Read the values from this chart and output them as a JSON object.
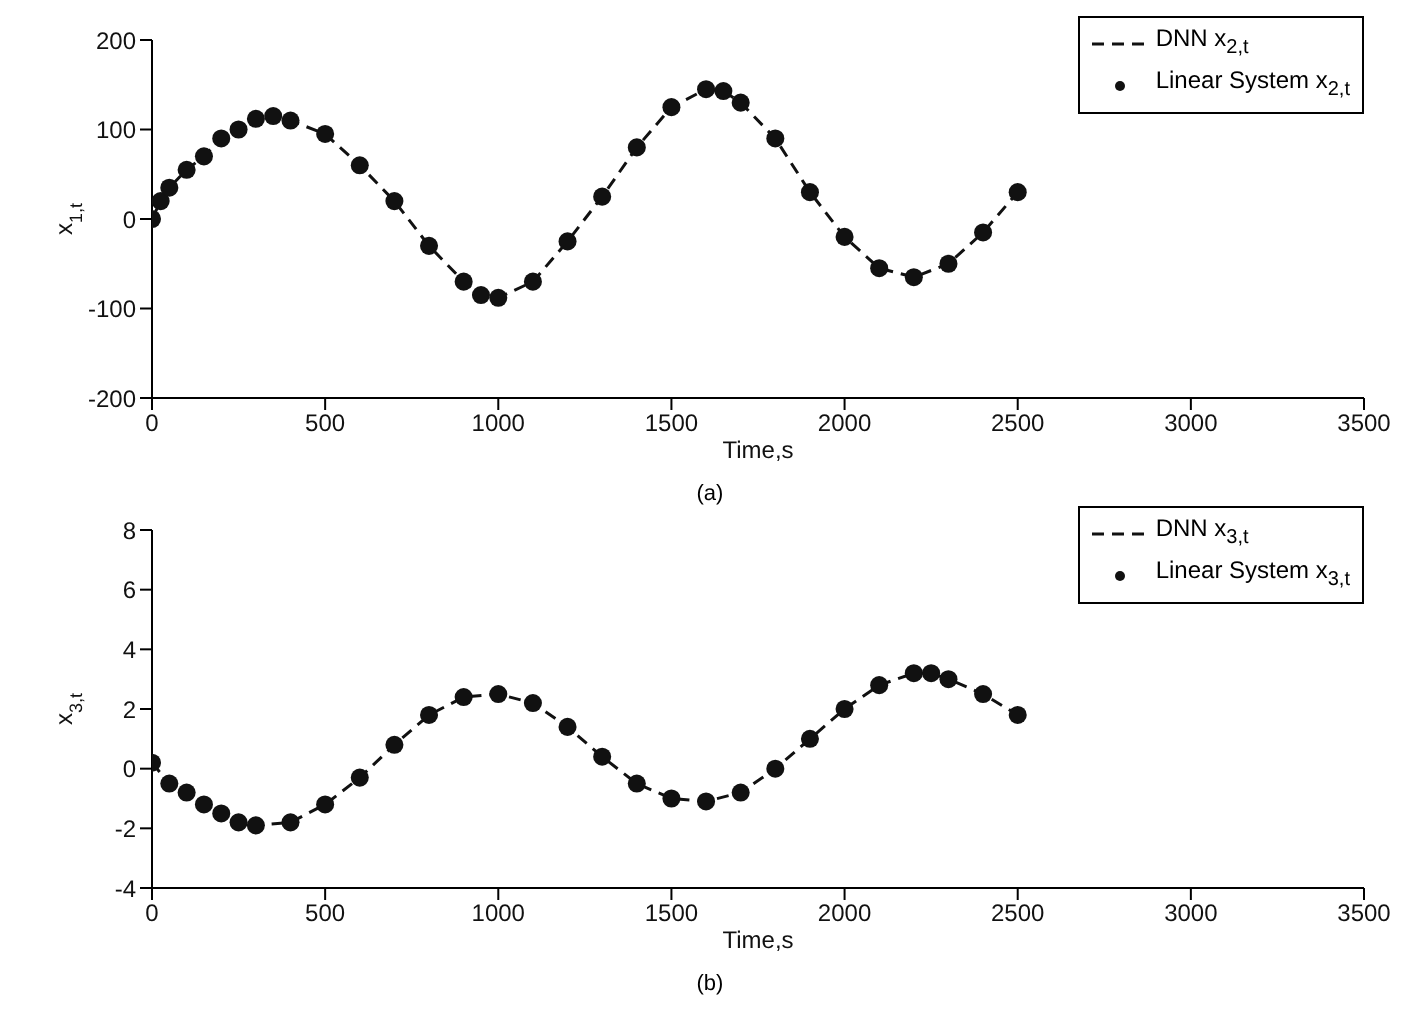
{
  "chart_data": [
    {
      "type": "line",
      "ylabel": "x$_{1,t}$",
      "xlabel": "Time,s",
      "annotations": [
        "(a)"
      ],
      "legend": "top right",
      "line_style": "dashed",
      "x": [
        0,
        25,
        50,
        100,
        150,
        200,
        250,
        300,
        350,
        400,
        500,
        600,
        700,
        800,
        900,
        950,
        1000,
        1100,
        1200,
        1300,
        1400,
        1500,
        1600,
        1650,
        1700,
        1800,
        1900,
        2000,
        2100,
        2200,
        2300,
        2400,
        2500
      ],
      "series": [
        {
          "name": "DNN x$_{2,t}$",
          "color": "#111111",
          "values": [
            0,
            20,
            35,
            55,
            70,
            90,
            100,
            112,
            115,
            110,
            95,
            60,
            20,
            -30,
            -70,
            -85,
            -88,
            -70,
            -25,
            25,
            80,
            125,
            145,
            143,
            130,
            90,
            30,
            -20,
            -55,
            -65,
            -50,
            -15,
            30
          ]
        },
        {
          "name": "Linear System x$_{2,t}$",
          "type": "scatter",
          "marker": "circle",
          "color": "#111111",
          "values": [
            0,
            20,
            35,
            55,
            70,
            90,
            100,
            112,
            115,
            110,
            95,
            60,
            20,
            -30,
            -70,
            -85,
            -88,
            -70,
            -25,
            25,
            80,
            125,
            145,
            143,
            130,
            90,
            30,
            -20,
            -55,
            -65,
            -50,
            -15,
            30
          ]
        }
      ],
      "xlim": [
        0,
        3500
      ],
      "xticks": [
        0,
        500,
        1000,
        1500,
        2000,
        2500,
        3000,
        3500
      ],
      "ylim": [
        -200,
        200
      ],
      "yticks": [
        -200,
        -100,
        0,
        100,
        200
      ]
    },
    {
      "type": "line",
      "ylabel": "x$_{3,t}$",
      "xlabel": "Time,s",
      "annotations": [
        "(b)"
      ],
      "legend": "top right",
      "line_style": "dashed",
      "x": [
        0,
        50,
        100,
        150,
        200,
        250,
        300,
        400,
        500,
        600,
        700,
        800,
        900,
        1000,
        1100,
        1200,
        1300,
        1400,
        1500,
        1600,
        1700,
        1800,
        1900,
        2000,
        2100,
        2200,
        2250,
        2300,
        2400,
        2500
      ],
      "series": [
        {
          "name": "DNN x$_{3,t}$",
          "color": "#111111",
          "values": [
            0.2,
            -0.5,
            -0.8,
            -1.2,
            -1.5,
            -1.8,
            -1.9,
            -1.8,
            -1.2,
            -0.3,
            0.8,
            1.8,
            2.4,
            2.5,
            2.2,
            1.4,
            0.4,
            -0.5,
            -1.0,
            -1.1,
            -0.8,
            0,
            1.0,
            2.0,
            2.8,
            3.2,
            3.2,
            3.0,
            2.5,
            1.8
          ]
        },
        {
          "name": "Linear System x$_{3,t}$",
          "type": "scatter",
          "marker": "circle",
          "color": "#111111",
          "values": [
            0.2,
            -0.5,
            -0.8,
            -1.2,
            -1.5,
            -1.8,
            -1.9,
            -1.8,
            -1.2,
            -0.3,
            0.8,
            1.8,
            2.4,
            2.5,
            2.2,
            1.4,
            0.4,
            -0.5,
            -1.0,
            -1.1,
            -0.8,
            0,
            1.0,
            2.0,
            2.8,
            3.2,
            3.2,
            3.0,
            2.5,
            1.8
          ]
        }
      ],
      "xlim": [
        0,
        3500
      ],
      "xticks": [
        0,
        500,
        1000,
        1500,
        2000,
        2500,
        3000,
        3500
      ],
      "ylim": [
        -4,
        8
      ],
      "yticks": [
        -4,
        -2,
        0,
        2,
        4,
        6,
        8
      ]
    }
  ]
}
